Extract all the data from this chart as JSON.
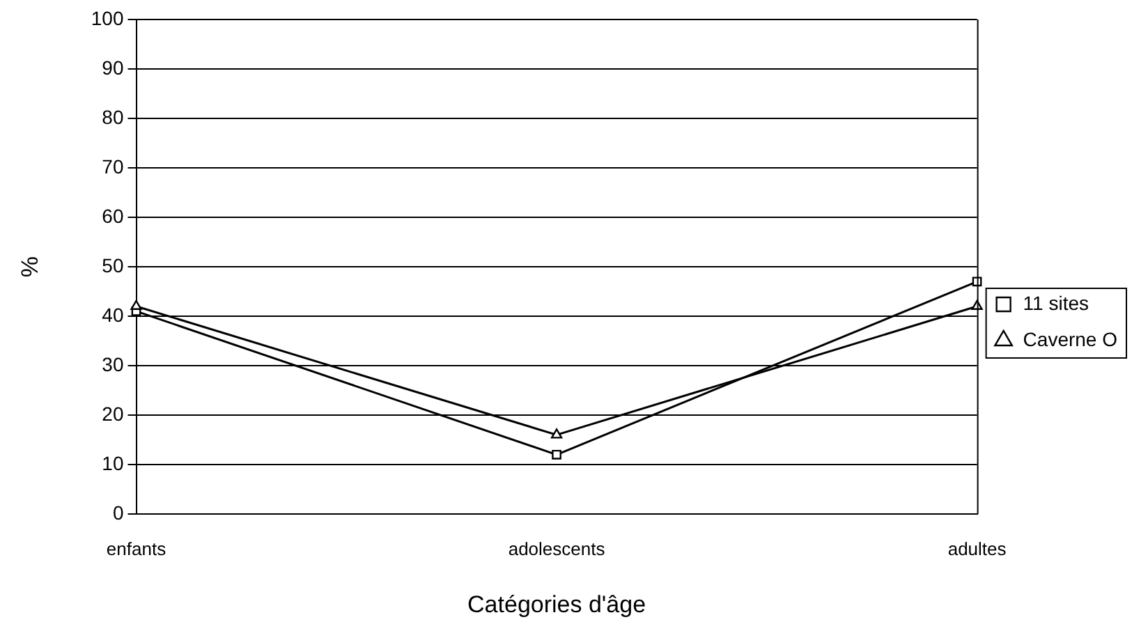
{
  "chart_data": {
    "type": "line",
    "xlabel": "Catégories d'âge",
    "ylabel": "%",
    "categories": [
      "enfants",
      "adolescents",
      "adultes"
    ],
    "series": [
      {
        "name": "11 sites",
        "color": "#000000",
        "marker": "square",
        "values": [
          41,
          12,
          47
        ]
      },
      {
        "name": "Caverne O",
        "color": "#000000",
        "marker": "triangle",
        "values": [
          42,
          16,
          42
        ]
      }
    ],
    "ylim": [
      0,
      100
    ],
    "yticks": [
      0,
      10,
      20,
      30,
      40,
      50,
      60,
      70,
      80,
      90,
      100
    ],
    "grid": "y",
    "legend": "right",
    "line_style": "solid"
  }
}
